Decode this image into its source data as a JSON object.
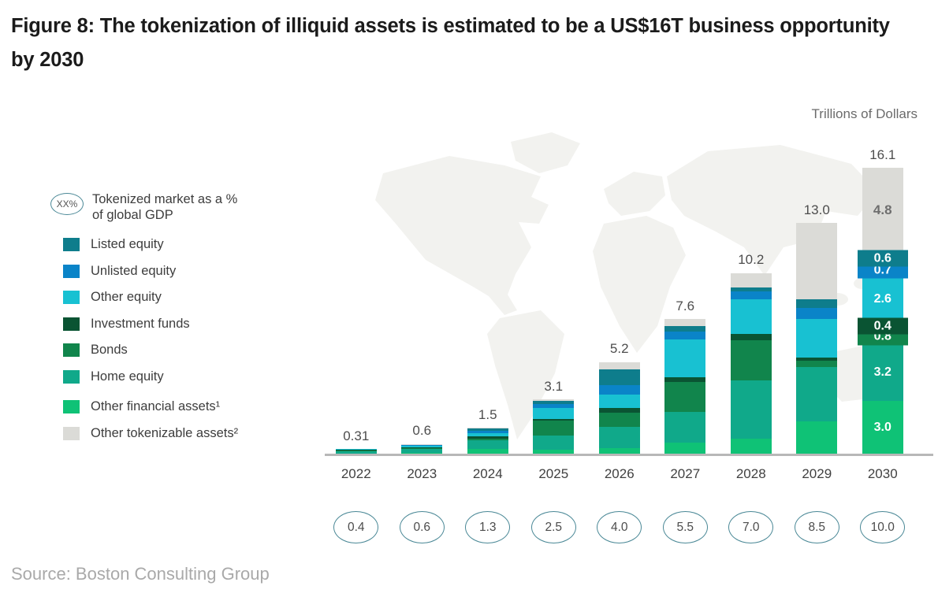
{
  "figure": {
    "title": "Figure 8: The tokenization of illiquid assets is estimated to be a US$16T business opportunity by 2030",
    "unit_label": "Trillions of Dollars",
    "source": "Source: Boston Consulting Group"
  },
  "legend": {
    "gdp_badge": "XX%",
    "gdp_label": "Tokenized market as a %\nof global GDP"
  },
  "chart_data": {
    "type": "bar",
    "subtype": "stacked",
    "title": "The tokenization of illiquid assets is estimated to be a US$16T business opportunity by 2030",
    "ylabel": "Trillions of Dollars",
    "xlabel": "",
    "ylim": [
      0,
      17
    ],
    "grid": false,
    "legend_position": "left",
    "categories": [
      "2022",
      "2023",
      "2024",
      "2025",
      "2026",
      "2027",
      "2028",
      "2029",
      "2030"
    ],
    "totals": [
      0.31,
      0.6,
      1.5,
      3.1,
      5.2,
      7.6,
      10.2,
      13.0,
      16.1
    ],
    "total_labels": [
      "0.31",
      "0.6",
      "1.5",
      "3.1",
      "5.2",
      "7.6",
      "10.2",
      "13.0",
      "16.1"
    ],
    "gdp_percent_labels": [
      "0.4",
      "0.6",
      "1.3",
      "2.5",
      "4.0",
      "5.5",
      "7.0",
      "8.5",
      "10.0"
    ],
    "series": [
      {
        "key": "listed_equity",
        "name": "Listed equity",
        "color": "#0e7d8c",
        "values": [
          0.0,
          0.03,
          0.1,
          0.15,
          0.9,
          0.3,
          0.25,
          0.45,
          0.6
        ],
        "label_2030": "0.6",
        "label_mode": "chip"
      },
      {
        "key": "unlisted_equity",
        "name": "Unlisted equity",
        "color": "#0a84c8",
        "values": [
          0.0,
          0.05,
          0.15,
          0.25,
          0.55,
          0.45,
          0.45,
          0.65,
          0.7
        ],
        "label_2030": "0.7",
        "label_mode": "chip"
      },
      {
        "key": "other_equity",
        "name": "Other equity",
        "color": "#18c1d2",
        "values": [
          0.04,
          0.1,
          0.2,
          0.6,
          0.75,
          2.1,
          1.95,
          2.15,
          2.6
        ],
        "label_2030": "2.6",
        "label_mode": "inside"
      },
      {
        "key": "investment_funds",
        "name": "Investment funds",
        "color": "#0a5433",
        "values": [
          0.03,
          0.05,
          0.1,
          0.1,
          0.25,
          0.3,
          0.35,
          0.2,
          0.4
        ],
        "label_2030": "0.4",
        "label_mode": "chip"
      },
      {
        "key": "bonds",
        "name": "Bonds",
        "color": "#11854c",
        "values": [
          0.03,
          0.05,
          0.1,
          0.85,
          0.8,
          1.65,
          2.25,
          0.35,
          0.8
        ],
        "label_2030": "0.8",
        "label_mode": "chip"
      },
      {
        "key": "home_equity",
        "name": "Home equity",
        "color": "#10a98a",
        "values": [
          0.15,
          0.2,
          0.5,
          0.8,
          1.2,
          1.75,
          3.25,
          3.05,
          3.2
        ],
        "label_2030": "3.2",
        "label_mode": "inside"
      },
      {
        "key": "other_financial_assets",
        "name": "Other financial assets¹",
        "color": "#0fc276",
        "values": [
          0.06,
          0.1,
          0.3,
          0.25,
          0.35,
          0.65,
          0.9,
          1.85,
          3.0
        ],
        "label_2030": "3.0",
        "label_mode": "inside"
      },
      {
        "key": "other_tokenizable_assets",
        "name": "Other tokenizable assets²",
        "color": "#dbdbd7",
        "values": [
          0.0,
          0.02,
          0.05,
          0.1,
          0.4,
          0.4,
          0.8,
          4.3,
          4.8
        ],
        "label_2030": "4.8",
        "label_mode": "muted"
      }
    ],
    "stack_order_bottom_to_top": [
      "other_financial_assets",
      "home_equity",
      "bonds",
      "investment_funds",
      "other_equity",
      "unlisted_equity",
      "listed_equity",
      "other_tokenizable_assets"
    ],
    "labeled_category": "2030"
  },
  "colors": {
    "axis_line": "#b8b8b8",
    "total_label": "#4d4d4d",
    "oval_border": "#4a8896",
    "map_silhouette": "#f2f2ef",
    "title_text": "#1b1b1b",
    "source_text": "#a9a9a9"
  }
}
